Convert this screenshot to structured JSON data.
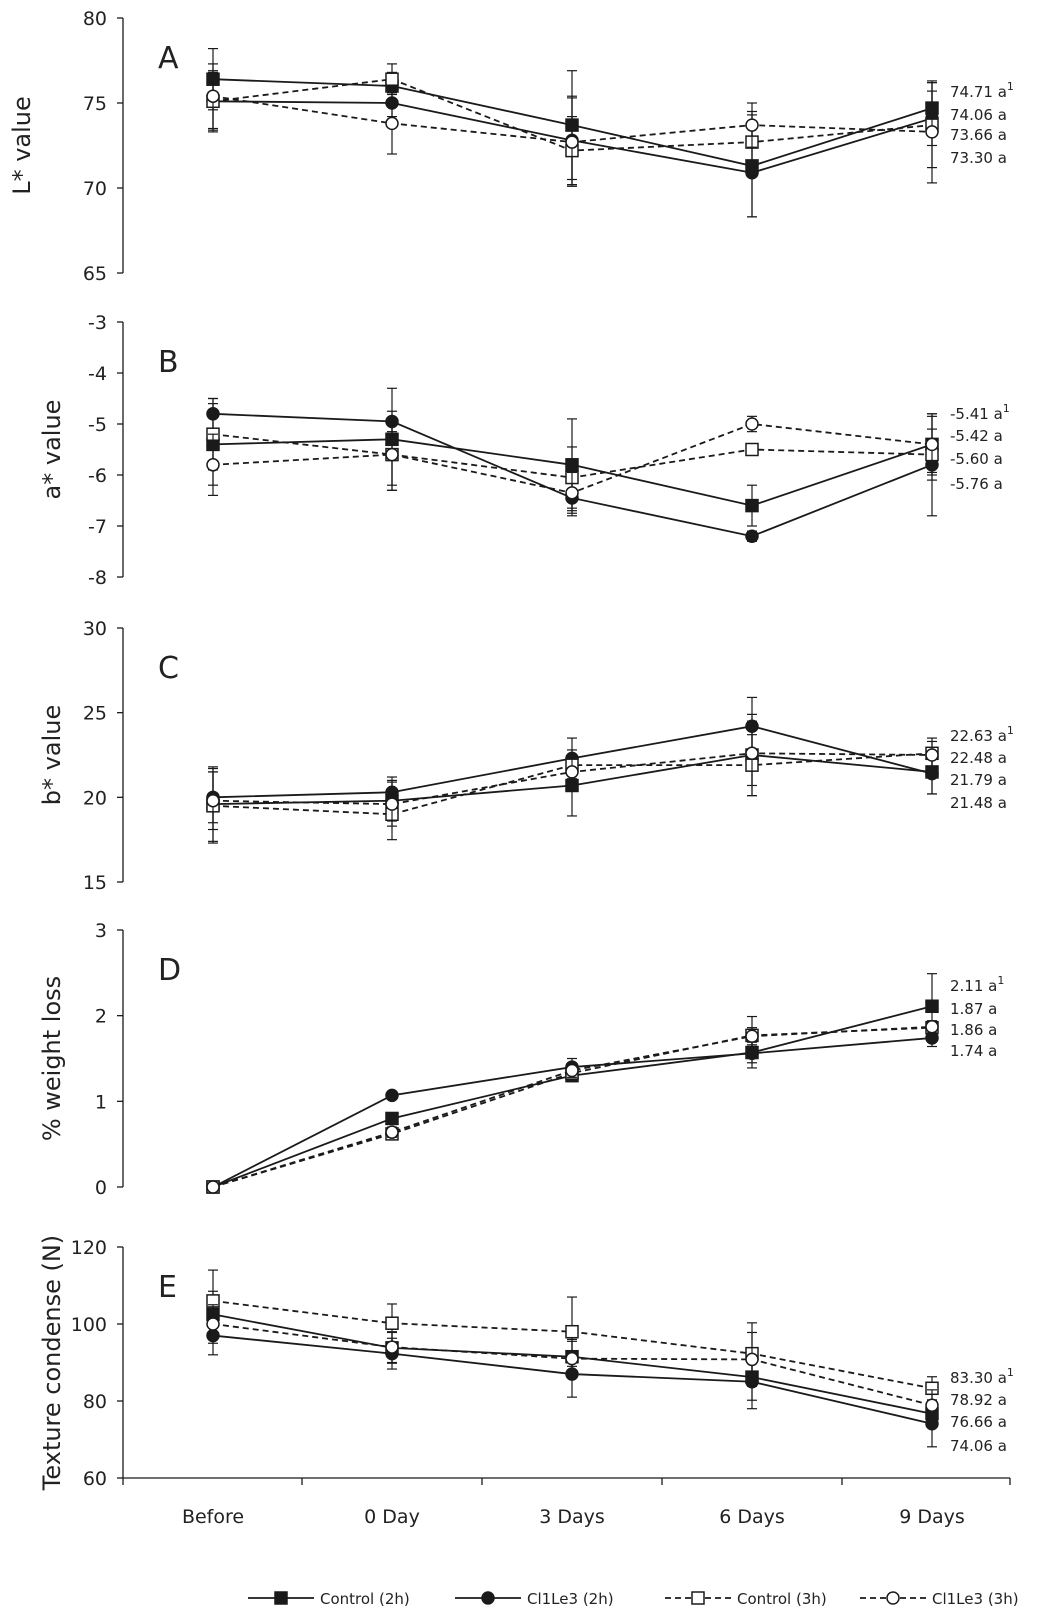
{
  "legend": [
    {
      "name": "Control (2h)",
      "marker": "filled-square",
      "dashed": false
    },
    {
      "name": "Cl1Le3 (2h)",
      "marker": "filled-circle",
      "dashed": false
    },
    {
      "name": "Control (3h)",
      "marker": "open-square",
      "dashed": true
    },
    {
      "name": "Cl1Le3 (3h)",
      "marker": "open-circle",
      "dashed": true
    }
  ],
  "colors": {
    "line": "#1a1a1a",
    "background": "#ffffff"
  },
  "chart_data": [
    {
      "type": "line",
      "panel": "A",
      "ylabel": "L* value",
      "ylim": [
        65,
        80
      ],
      "yticks": [
        65,
        70,
        75,
        80
      ],
      "categories": [
        "Before",
        "0 Day",
        "3 Days",
        "6 Days",
        "9 Days"
      ],
      "series": [
        {
          "name": "Control (2h)",
          "values": [
            76.4,
            76.0,
            73.7,
            71.3,
            74.7
          ],
          "errors": [
            1.8,
            0.8,
            3.2,
            3.0,
            1.5
          ]
        },
        {
          "name": "Cl1Le3 (2h)",
          "values": [
            75.1,
            75.0,
            72.8,
            70.9,
            74.1
          ],
          "errors": [
            1.8,
            0.8,
            2.6,
            2.6,
            1.6
          ]
        },
        {
          "name": "Control (3h)",
          "values": [
            75.1,
            76.4,
            72.2,
            72.7,
            73.7
          ],
          "errors": [
            1.7,
            0.9,
            2.0,
            1.8,
            2.5
          ]
        },
        {
          "name": "Cl1Le3 (3h)",
          "values": [
            75.4,
            73.8,
            72.7,
            73.7,
            73.3
          ],
          "errors": [
            1.9,
            1.8,
            2.6,
            1.3,
            3.0
          ]
        }
      ],
      "end_labels": [
        "74.71 a",
        "74.06 a",
        "73.66 a",
        "73.30 a"
      ],
      "end_superscript": "1"
    },
    {
      "type": "line",
      "panel": "B",
      "ylabel": "a* value",
      "ylim": [
        -8,
        -3
      ],
      "yticks": [
        -8,
        -7,
        -6,
        -5,
        -4,
        -3
      ],
      "categories": [
        "Before",
        "0 Day",
        "3 Days",
        "6 Days",
        "9 Days"
      ],
      "series": [
        {
          "name": "Control (2h)",
          "values": [
            -5.4,
            -5.3,
            -5.8,
            -6.6,
            -5.4
          ],
          "errors": [
            0.8,
            1.0,
            0.9,
            0.4,
            0.55
          ]
        },
        {
          "name": "Cl1Le3 (2h)",
          "values": [
            -4.8,
            -4.95,
            -6.45,
            -7.2,
            -5.8
          ],
          "errors": [
            0.3,
            0.2,
            0.35,
            0.1,
            1.0
          ]
        },
        {
          "name": "Control (3h)",
          "values": [
            -5.2,
            -5.6,
            -6.05,
            -5.5,
            -5.6
          ],
          "errors": [
            0.7,
            0.6,
            0.6,
            0.1,
            0.5
          ]
        },
        {
          "name": "Cl1Le3 (3h)",
          "values": [
            -5.8,
            -5.6,
            -6.35,
            -5.0,
            -5.4
          ],
          "errors": [
            0.6,
            0.7,
            0.4,
            0.15,
            0.6
          ]
        }
      ],
      "end_labels": [
        "-5.41 a",
        "-5.42 a",
        "-5.60 a",
        "-5.76 a"
      ],
      "end_superscript": "1"
    },
    {
      "type": "line",
      "panel": "C",
      "ylabel": "b* value",
      "ylim": [
        15,
        30
      ],
      "yticks": [
        15,
        20,
        25,
        30
      ],
      "categories": [
        "Before",
        "0 Day",
        "3 Days",
        "6 Days",
        "9 Days"
      ],
      "series": [
        {
          "name": "Control (2h)",
          "values": [
            19.6,
            19.8,
            20.7,
            22.5,
            21.5
          ],
          "errors": [
            2.2,
            1.2,
            1.8,
            2.4,
            1.3
          ]
        },
        {
          "name": "Cl1Le3 (2h)",
          "values": [
            20.0,
            20.3,
            22.3,
            24.2,
            21.4
          ],
          "errors": [
            1.5,
            0.9,
            1.2,
            1.7,
            1.2
          ]
        },
        {
          "name": "Control (3h)",
          "values": [
            19.5,
            19.0,
            21.9,
            21.9,
            22.6
          ],
          "errors": [
            2.2,
            1.5,
            0.9,
            1.8,
            0.9
          ]
        },
        {
          "name": "Cl1Le3 (3h)",
          "values": [
            19.8,
            19.6,
            21.5,
            22.6,
            22.5
          ],
          "errors": [
            1.7,
            1.3,
            1.0,
            1.9,
            0.8
          ]
        }
      ],
      "end_labels": [
        "22.63 a",
        "22.48 a",
        "21.79 a",
        "21.48 a"
      ],
      "end_superscript": "1"
    },
    {
      "type": "line",
      "panel": "D",
      "ylabel": "% weight loss",
      "ylim": [
        0,
        3
      ],
      "yticks": [
        0,
        1,
        2,
        3
      ],
      "categories": [
        "Before",
        "0 Day",
        "3 Days",
        "6 Days",
        "9 Days"
      ],
      "series": [
        {
          "name": "Control (2h)",
          "values": [
            0,
            0.8,
            1.3,
            1.57,
            2.11
          ],
          "errors": [
            0,
            0.05,
            0.05,
            0.12,
            0.38
          ]
        },
        {
          "name": "Cl1Le3 (2h)",
          "values": [
            0,
            1.07,
            1.4,
            1.56,
            1.74
          ],
          "errors": [
            0,
            0.04,
            0.1,
            0.17,
            0.1
          ]
        },
        {
          "name": "Control (3h)",
          "values": [
            0,
            0.62,
            1.33,
            1.77,
            1.86
          ],
          "errors": [
            0,
            0.07,
            0.1,
            0.22,
            0.08
          ]
        },
        {
          "name": "Cl1Le3 (3h)",
          "values": [
            0,
            0.64,
            1.36,
            1.76,
            1.87
          ],
          "errors": [
            0,
            0.06,
            0.08,
            0.1,
            0.07
          ]
        }
      ],
      "end_labels": [
        "2.11 a",
        "1.87 a",
        "1.86 a",
        "1.74 a"
      ],
      "end_superscript": "1"
    },
    {
      "type": "line",
      "panel": "E",
      "ylabel": "Texture condense (N)",
      "ylim": [
        60,
        120
      ],
      "yticks": [
        60,
        80,
        100,
        120
      ],
      "categories": [
        "Before",
        "0 Day",
        "3 Days",
        "6 Days",
        "9 Days"
      ],
      "series": [
        {
          "name": "Control (2h)",
          "values": [
            102.5,
            93.8,
            91.5,
            86.2,
            76.7
          ],
          "errors": [
            6,
            4,
            4,
            6,
            3
          ]
        },
        {
          "name": "Cl1Le3 (2h)",
          "values": [
            97.0,
            92.3,
            87.0,
            85.0,
            74.1
          ],
          "errors": [
            5,
            4,
            6,
            7,
            6
          ]
        },
        {
          "name": "Control (3h)",
          "values": [
            106.0,
            100.2,
            98.0,
            92.3,
            83.3
          ],
          "errors": [
            8,
            5,
            9,
            8,
            3
          ]
        },
        {
          "name": "Cl1Le3 (3h)",
          "values": [
            100.0,
            94.0,
            91.0,
            90.8,
            78.9
          ],
          "errors": [
            5,
            4,
            5,
            7,
            4
          ]
        }
      ],
      "end_labels": [
        "83.30 a",
        "78.92 a",
        "76.66 a",
        "74.06 a"
      ],
      "end_superscript": "1"
    }
  ]
}
